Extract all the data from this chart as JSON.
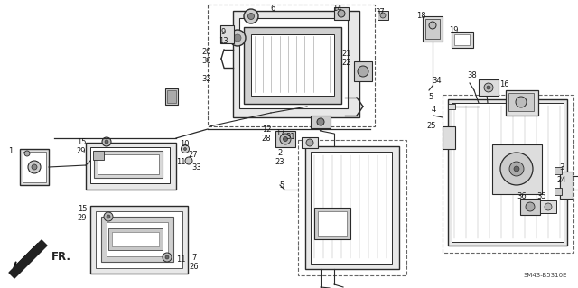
{
  "bg_color": "#ffffff",
  "diagram_code": "SM43-B5310E",
  "fig_width": 6.4,
  "fig_height": 3.19,
  "dpi": 100,
  "line_color": "#2a2a2a",
  "label_color": "#1a1a1a",
  "font_size": 6.0
}
